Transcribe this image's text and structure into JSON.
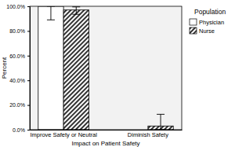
{
  "chart_data": {
    "type": "bar",
    "x_label": "Impact on Patient Safety",
    "y_label": "Percent",
    "legend_title": "Population",
    "categories": [
      "Improve Safety or Neutral",
      "Diminish Safety"
    ],
    "series": [
      {
        "name": "Physician",
        "color": "#ffffff",
        "values": [
          100,
          0
        ],
        "ci_lower": [
          89,
          null
        ],
        "ci_upper": [
          100,
          null
        ]
      },
      {
        "name": "Nurse",
        "color": "#333333",
        "values": [
          97,
          3
        ],
        "ci_lower": [
          93.5,
          0
        ],
        "ci_upper": [
          99.5,
          12.5
        ]
      }
    ],
    "ylim": [
      0,
      100
    ],
    "yticks": [
      {
        "value": 0,
        "label": "0.0%"
      },
      {
        "value": 20,
        "label": "20.0%"
      },
      {
        "value": 40,
        "label": "40.0%"
      },
      {
        "value": 60,
        "label": "60.0%"
      },
      {
        "value": 80,
        "label": "80.0%"
      },
      {
        "value": 100,
        "label": "100.0%"
      }
    ],
    "legend": "upper right"
  }
}
